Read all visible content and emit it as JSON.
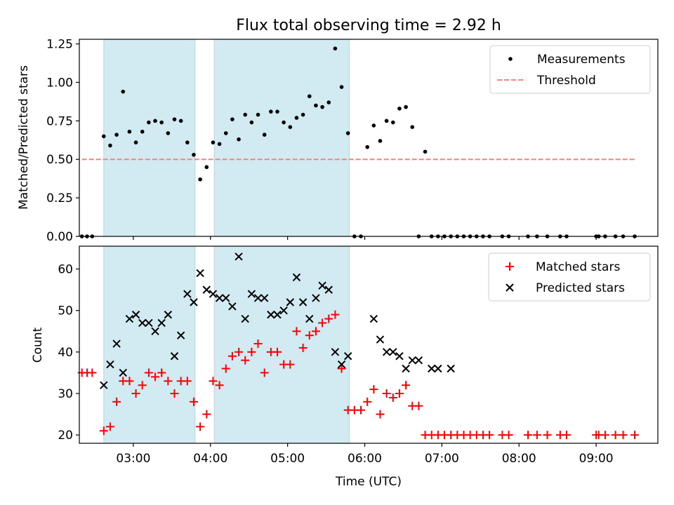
{
  "title": "Flux total observing time = 2.92 h",
  "colors": {
    "shade": "#add8e6",
    "matched": "#ff0000",
    "predicted": "#000000",
    "threshold": "#ff7f7f",
    "measurement": "#000000"
  },
  "chart_data": [
    {
      "type": "scatter",
      "panel": "top",
      "ylabel": "Matched/Predicted stars",
      "ylim": [
        0,
        1.28
      ],
      "yticks": [
        0,
        0.25,
        0.5,
        0.75,
        1.0,
        1.25
      ],
      "ytick_labels": [
        "0.00",
        "0.25",
        "0.50",
        "0.75",
        "1.00",
        "1.25"
      ],
      "xlim": [
        "02:18",
        "09:48"
      ],
      "xticks": [
        "03:00",
        "04:00",
        "05:00",
        "06:00",
        "07:00",
        "08:00",
        "09:00"
      ],
      "shaded_intervals": [
        [
          "02:37",
          "03:48"
        ],
        [
          "04:03",
          "05:48"
        ]
      ],
      "legend": {
        "position": "upper-right",
        "entries": [
          "Measurements",
          "Threshold"
        ]
      },
      "threshold": {
        "name": "Threshold",
        "value": 0.5,
        "x_range": [
          "02:20",
          "09:30"
        ]
      },
      "series": [
        {
          "name": "Measurements",
          "x": [
            "02:20",
            "02:24",
            "02:28",
            "02:37",
            "02:42",
            "02:47",
            "02:52",
            "02:57",
            "03:02",
            "03:07",
            "03:12",
            "03:17",
            "03:22",
            "03:27",
            "03:32",
            "03:37",
            "03:42",
            "03:47",
            "03:52",
            "03:57",
            "04:02",
            "04:07",
            "04:12",
            "04:17",
            "04:22",
            "04:27",
            "04:32",
            "04:37",
            "04:42",
            "04:47",
            "04:52",
            "04:57",
            "05:02",
            "05:07",
            "05:12",
            "05:17",
            "05:22",
            "05:27",
            "05:32",
            "05:37",
            "05:42",
            "05:47",
            "05:52",
            "05:57",
            "06:02",
            "06:07",
            "06:12",
            "06:17",
            "06:22",
            "06:27",
            "06:32",
            "06:37",
            "06:42",
            "06:47",
            "06:52",
            "06:57",
            "07:02",
            "07:07",
            "07:12",
            "07:17",
            "07:22",
            "07:27",
            "07:32",
            "07:37",
            "07:47",
            "07:52",
            "08:07",
            "08:14",
            "08:22",
            "08:32",
            "08:37",
            "09:00",
            "09:02",
            "09:07",
            "09:15",
            "09:21",
            "09:30"
          ],
          "y": [
            0,
            0,
            0,
            0.65,
            0.59,
            0.66,
            0.94,
            0.68,
            0.61,
            0.68,
            0.74,
            0.75,
            0.74,
            0.67,
            0.76,
            0.75,
            0.61,
            0.53,
            0.37,
            0.45,
            0.61,
            0.6,
            0.67,
            0.76,
            0.63,
            0.79,
            0.74,
            0.79,
            0.66,
            0.81,
            0.81,
            0.74,
            0.71,
            0.77,
            0.79,
            0.91,
            0.85,
            0.84,
            0.87,
            1.22,
            0.97,
            0.67,
            0,
            0,
            0.58,
            0.72,
            0.62,
            0.75,
            0.74,
            0.83,
            0.84,
            0.71,
            0,
            0.55,
            0,
            0,
            0,
            0,
            0,
            0,
            0,
            0,
            0,
            0,
            0,
            0,
            0,
            0,
            0,
            0,
            0,
            0,
            0,
            0,
            0,
            0,
            0
          ]
        }
      ]
    },
    {
      "type": "scatter",
      "panel": "bottom",
      "xlabel": "Time (UTC)",
      "ylabel": "Count",
      "ylim": [
        18,
        65.5
      ],
      "yticks": [
        20,
        30,
        40,
        50,
        60
      ],
      "ytick_labels": [
        "20",
        "30",
        "40",
        "50",
        "60"
      ],
      "xlim": [
        "02:18",
        "09:48"
      ],
      "xticks": [
        "03:00",
        "04:00",
        "05:00",
        "06:00",
        "07:00",
        "08:00",
        "09:00"
      ],
      "shaded_intervals": [
        [
          "02:37",
          "03:48"
        ],
        [
          "04:03",
          "05:48"
        ]
      ],
      "legend": {
        "position": "upper-right",
        "entries": [
          "Matched stars",
          "Predicted stars"
        ]
      },
      "series": [
        {
          "name": "Matched stars",
          "marker": "plus",
          "x": [
            "02:20",
            "02:24",
            "02:28",
            "02:37",
            "02:42",
            "02:47",
            "02:52",
            "02:57",
            "03:02",
            "03:07",
            "03:12",
            "03:17",
            "03:22",
            "03:27",
            "03:32",
            "03:37",
            "03:42",
            "03:47",
            "03:52",
            "03:57",
            "04:02",
            "04:07",
            "04:12",
            "04:17",
            "04:22",
            "04:27",
            "04:32",
            "04:37",
            "04:42",
            "04:47",
            "04:52",
            "04:57",
            "05:02",
            "05:07",
            "05:12",
            "05:17",
            "05:22",
            "05:27",
            "05:32",
            "05:37",
            "05:42",
            "05:47",
            "05:52",
            "05:57",
            "06:02",
            "06:07",
            "06:12",
            "06:17",
            "06:22",
            "06:27",
            "06:32",
            "06:37",
            "06:42",
            "06:47",
            "06:52",
            "06:57",
            "07:02",
            "07:07",
            "07:12",
            "07:17",
            "07:22",
            "07:27",
            "07:32",
            "07:37",
            "07:47",
            "07:52",
            "08:07",
            "08:14",
            "08:22",
            "08:32",
            "08:37",
            "09:00",
            "09:02",
            "09:07",
            "09:15",
            "09:21",
            "09:30"
          ],
          "y": [
            35,
            35,
            35,
            21,
            22,
            28,
            33,
            33,
            30,
            32,
            35,
            34,
            35,
            33,
            30,
            33,
            33,
            28,
            22,
            25,
            33,
            32,
            36,
            39,
            40,
            38,
            40,
            42,
            35,
            40,
            40,
            37,
            37,
            45,
            41,
            44,
            45,
            47,
            48,
            49,
            36,
            26,
            26,
            26,
            28,
            31,
            25,
            30,
            29,
            30,
            32,
            27,
            27,
            20,
            20,
            20,
            20,
            20,
            20,
            20,
            20,
            20,
            20,
            20,
            20,
            20,
            20,
            20,
            20,
            20,
            20,
            20,
            20,
            20,
            20,
            20,
            20
          ]
        },
        {
          "name": "Predicted stars",
          "marker": "x",
          "x": [
            "02:37",
            "02:42",
            "02:47",
            "02:52",
            "02:57",
            "03:02",
            "03:07",
            "03:12",
            "03:17",
            "03:22",
            "03:27",
            "03:32",
            "03:37",
            "03:42",
            "03:47",
            "03:52",
            "03:57",
            "04:02",
            "04:07",
            "04:12",
            "04:17",
            "04:22",
            "04:27",
            "04:32",
            "04:37",
            "04:42",
            "04:47",
            "04:52",
            "04:57",
            "05:02",
            "05:07",
            "05:12",
            "05:17",
            "05:22",
            "05:27",
            "05:32",
            "05:37",
            "05:42",
            "05:47",
            "06:07",
            "06:12",
            "06:17",
            "06:22",
            "06:27",
            "06:32",
            "06:37",
            "06:42",
            "06:52",
            "06:57",
            "07:07"
          ],
          "y": [
            32,
            37,
            42,
            35,
            48,
            49,
            47,
            47,
            45,
            47,
            49,
            39,
            44,
            54,
            52,
            59,
            55,
            54,
            53,
            53,
            51,
            63,
            48,
            54,
            53,
            53,
            49,
            49,
            50,
            52,
            58,
            52,
            48,
            53,
            56,
            55,
            40,
            37,
            39,
            48,
            43,
            40,
            40,
            39,
            36,
            38,
            38,
            36,
            36,
            36
          ]
        }
      ]
    }
  ]
}
